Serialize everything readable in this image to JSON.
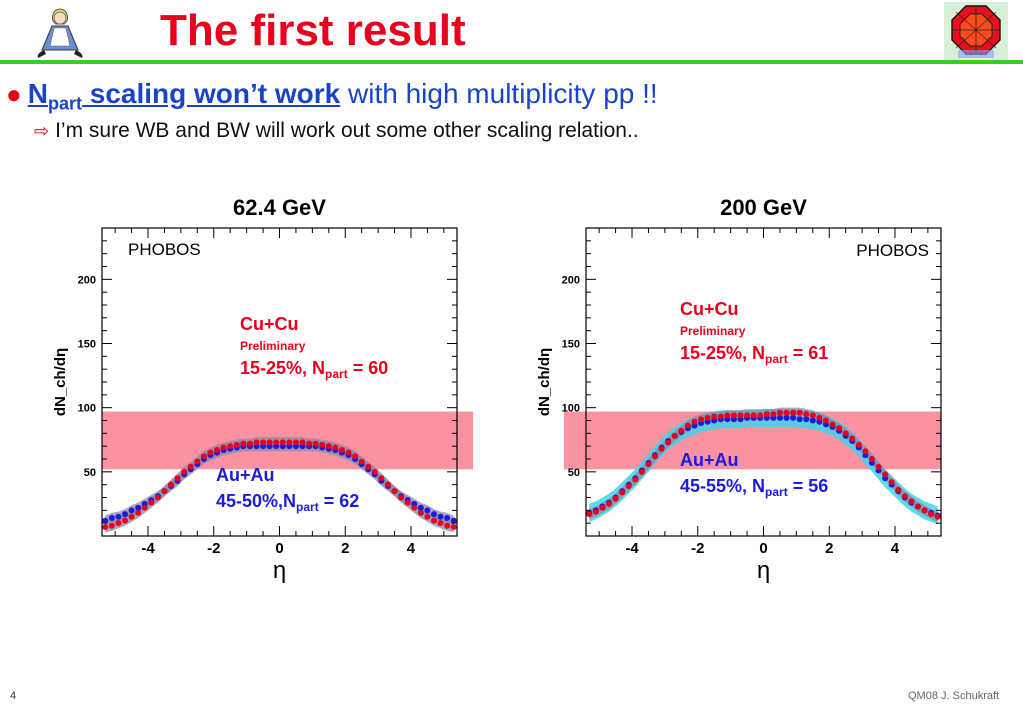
{
  "slide": {
    "title": "The first result",
    "bullet1": {
      "n": "N",
      "n_sub": "part",
      "bold_rest": " scaling won’t work",
      "rest": " with high multiplicity pp !!"
    },
    "bullet2": "I’m sure WB and BW will work out some other scaling relation..",
    "page_number": "4",
    "credit": "QM08 J. Schukraft",
    "colors": {
      "title": "#e8001c",
      "divider": "#2fd21f",
      "bullet": "#1a44c8",
      "band": "#fb8c9c",
      "cucu": "#e8001c",
      "auau": "#1a1ae0"
    },
    "logos": [
      "alice-in-wonderland-logo",
      "alice-experiment-logo"
    ]
  },
  "chart_data": [
    {
      "type": "scatter",
      "title": "62.4 GeV",
      "watermark": "PHOBOS",
      "xlabel": "η",
      "ylabel": "dN_ch/dη",
      "xlim": [
        -5.4,
        5.4
      ],
      "ylim": [
        0,
        240
      ],
      "xticks": [
        -4,
        -2,
        0,
        2,
        4
      ],
      "yticks": [
        50,
        100,
        150,
        200
      ],
      "band": {
        "ymin": 52,
        "ymax": 97,
        "color": "#fb8c9c",
        "extends_right": true
      },
      "labels": {
        "cucu_system": "Cu+Cu",
        "cucu_note": "Preliminary",
        "cucu_centrality": "15-25%, N",
        "cucu_sub": "part",
        "cucu_value": " = 60",
        "auau_system": "Au+Au",
        "auau_centrality": "45-50%,N",
        "auau_sub": "part",
        "auau_value": " = 62"
      },
      "series": [
        {
          "name": "Cu+Cu",
          "color": "#e8001c",
          "x": [
            -5.3,
            -5.1,
            -4.9,
            -4.7,
            -4.5,
            -4.3,
            -4.1,
            -3.9,
            -3.7,
            -3.5,
            -3.3,
            -3.1,
            -2.9,
            -2.7,
            -2.5,
            -2.3,
            -2.1,
            -1.9,
            -1.7,
            -1.5,
            -1.3,
            -1.1,
            -0.9,
            -0.7,
            -0.5,
            -0.3,
            -0.1,
            0.1,
            0.3,
            0.5,
            0.7,
            0.9,
            1.1,
            1.3,
            1.5,
            1.7,
            1.9,
            2.1,
            2.3,
            2.5,
            2.7,
            2.9,
            3.1,
            3.3,
            3.5,
            3.7,
            3.9,
            4.1,
            4.3,
            4.5,
            4.7,
            4.9,
            5.1,
            5.3
          ],
          "y": [
            7,
            8,
            10,
            12,
            15,
            18,
            22,
            26,
            30,
            35,
            40,
            45,
            50,
            54,
            58,
            62,
            65,
            67,
            69,
            70,
            71,
            72,
            72,
            73,
            73,
            73,
            73,
            73,
            73,
            73,
            73,
            72,
            72,
            71,
            70,
            69,
            67,
            65,
            62,
            58,
            54,
            50,
            45,
            40,
            35,
            30,
            26,
            22,
            18,
            15,
            12,
            10,
            8,
            7
          ]
        },
        {
          "name": "Au+Au",
          "color": "#1a1ae0",
          "x": [
            -5.3,
            -5.1,
            -4.9,
            -4.7,
            -4.5,
            -4.3,
            -4.1,
            -3.9,
            -3.7,
            -3.5,
            -3.3,
            -3.1,
            -2.9,
            -2.7,
            -2.5,
            -2.3,
            -2.1,
            -1.9,
            -1.7,
            -1.5,
            -1.3,
            -1.1,
            -0.9,
            -0.7,
            -0.5,
            -0.3,
            -0.1,
            0.1,
            0.3,
            0.5,
            0.7,
            0.9,
            1.1,
            1.3,
            1.5,
            1.7,
            1.9,
            2.1,
            2.3,
            2.5,
            2.7,
            2.9,
            3.1,
            3.3,
            3.5,
            3.7,
            3.9,
            4.1,
            4.3,
            4.5,
            4.7,
            4.9,
            5.1,
            5.3
          ],
          "y": [
            12,
            14,
            15,
            17,
            20,
            22,
            25,
            28,
            31,
            35,
            39,
            43,
            48,
            52,
            56,
            60,
            63,
            65,
            67,
            68,
            69,
            70,
            70,
            70,
            70,
            70,
            70,
            70,
            70,
            70,
            70,
            70,
            70,
            69,
            68,
            67,
            65,
            63,
            60,
            56,
            52,
            48,
            43,
            39,
            35,
            31,
            28,
            25,
            22,
            20,
            17,
            15,
            14,
            12
          ]
        }
      ]
    },
    {
      "type": "scatter",
      "title": "200 GeV",
      "watermark": "PHOBOS",
      "xlabel": "η",
      "ylabel": "dN_ch/dη",
      "xlim": [
        -5.4,
        5.4
      ],
      "ylim": [
        0,
        240
      ],
      "xticks": [
        -4,
        -2,
        0,
        2,
        4
      ],
      "yticks": [
        50,
        100,
        150,
        200
      ],
      "band": {
        "ymin": 52,
        "ymax": 97,
        "color": "#fb8c9c",
        "extends_left": true
      },
      "labels": {
        "cucu_system": "Cu+Cu",
        "cucu_note": "Preliminary",
        "cucu_centrality": "15-25%, N",
        "cucu_sub": "part",
        "cucu_value": " = 61",
        "auau_system": "Au+Au",
        "auau_centrality": "45-55%, N",
        "auau_sub": "part",
        "auau_value": " = 56"
      },
      "series": [
        {
          "name": "Cu+Cu",
          "color": "#e8001c",
          "x": [
            -5.3,
            -5.1,
            -4.9,
            -4.7,
            -4.5,
            -4.3,
            -4.1,
            -3.9,
            -3.7,
            -3.5,
            -3.3,
            -3.1,
            -2.9,
            -2.7,
            -2.5,
            -2.3,
            -2.1,
            -1.9,
            -1.7,
            -1.5,
            -1.3,
            -1.1,
            -0.9,
            -0.7,
            -0.5,
            -0.3,
            -0.1,
            0.1,
            0.3,
            0.5,
            0.7,
            0.9,
            1.1,
            1.3,
            1.5,
            1.7,
            1.9,
            2.1,
            2.3,
            2.5,
            2.7,
            2.9,
            3.1,
            3.3,
            3.5,
            3.7,
            3.9,
            4.1,
            4.3,
            4.5,
            4.7,
            4.9,
            5.1,
            5.3
          ],
          "y": [
            17,
            19,
            22,
            25,
            29,
            34,
            39,
            44,
            50,
            56,
            62,
            68,
            73,
            78,
            82,
            86,
            89,
            91,
            92,
            93,
            93,
            94,
            94,
            94,
            94,
            94,
            94,
            95,
            95,
            96,
            96,
            96,
            96,
            95,
            94,
            92,
            90,
            87,
            84,
            80,
            76,
            71,
            66,
            60,
            54,
            48,
            42,
            36,
            31,
            27,
            23,
            20,
            17,
            15
          ]
        },
        {
          "name": "Au+Au",
          "color": "#1a1ae0",
          "x": [
            -5.3,
            -5.1,
            -4.9,
            -4.7,
            -4.5,
            -4.3,
            -4.1,
            -3.9,
            -3.7,
            -3.5,
            -3.3,
            -3.1,
            -2.9,
            -2.7,
            -2.5,
            -2.3,
            -2.1,
            -1.9,
            -1.7,
            -1.5,
            -1.3,
            -1.1,
            -0.9,
            -0.7,
            -0.5,
            -0.3,
            -0.1,
            0.1,
            0.3,
            0.5,
            0.7,
            0.9,
            1.1,
            1.3,
            1.5,
            1.7,
            1.9,
            2.1,
            2.3,
            2.5,
            2.7,
            2.9,
            3.1,
            3.3,
            3.5,
            3.7,
            3.9,
            4.1,
            4.3,
            4.5,
            4.7,
            4.9,
            5.1,
            5.3
          ],
          "y": [
            18,
            20,
            23,
            26,
            30,
            35,
            40,
            45,
            51,
            57,
            63,
            69,
            74,
            78,
            81,
            84,
            86,
            88,
            89,
            90,
            91,
            91,
            91,
            91,
            92,
            92,
            92,
            92,
            92,
            92,
            92,
            92,
            91,
            91,
            90,
            89,
            87,
            85,
            82,
            78,
            74,
            69,
            63,
            57,
            51,
            45,
            40,
            35,
            30,
            26,
            23,
            20,
            18,
            16
          ]
        }
      ]
    }
  ]
}
